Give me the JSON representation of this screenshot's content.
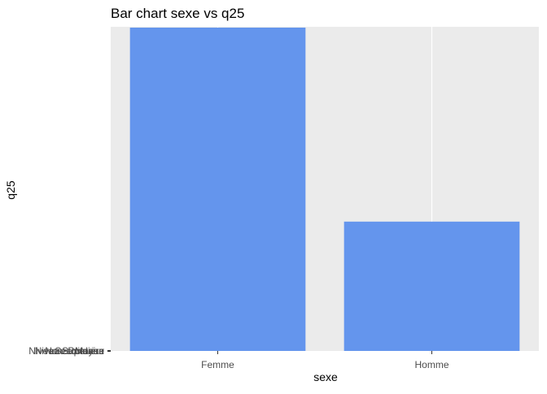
{
  "chart_data": {
    "type": "bar",
    "title": "Bar chart sexe vs q25",
    "xlabel": "sexe",
    "ylabel": "q25",
    "categories": [
      "Femme",
      "Homme"
    ],
    "values": [
      5,
      2
    ],
    "ylim": [
      0,
      5
    ],
    "y_tick_labels_overlapping": [
      "Niveau Superieur",
      "Niveau Primaire",
      "Non scolarise",
      "Secondaire",
      "Moyen"
    ],
    "grid": true,
    "legend": "none",
    "colors": {
      "bar": "#6495ED",
      "panel_background": "#EBEBEB",
      "grid": "#FFFFFF",
      "text": "#000000",
      "tick_text": "#4D4D4D"
    }
  }
}
